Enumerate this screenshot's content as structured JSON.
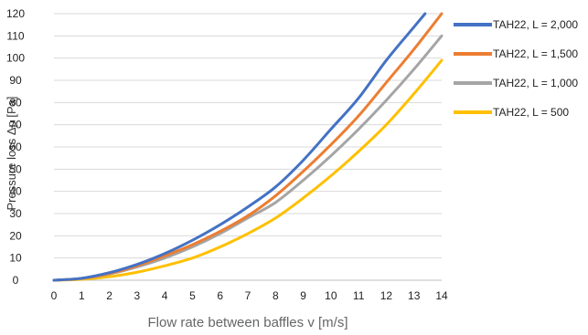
{
  "chart_data": {
    "type": "line",
    "title": "",
    "xlabel": "Flow rate between baffles v [m/s]",
    "ylabel": "Pressure loss Δp [Pa]",
    "xlim": [
      0,
      14
    ],
    "ylim": [
      0,
      120
    ],
    "x_ticks": [
      0,
      1,
      2,
      3,
      4,
      5,
      6,
      7,
      8,
      9,
      10,
      11,
      12,
      13,
      14
    ],
    "y_ticks": [
      0,
      10,
      20,
      30,
      40,
      50,
      60,
      70,
      80,
      90,
      100,
      110,
      120
    ],
    "grid": "horizontal",
    "legend": "right",
    "series": [
      {
        "name": "TAH22, L = 2,000",
        "color": "#4472C4",
        "x": [
          0,
          1,
          2,
          3,
          4,
          5,
          6,
          7,
          8,
          9,
          10,
          11,
          12,
          13,
          13.4
        ],
        "y": [
          0,
          0.9,
          3.4,
          7.1,
          12,
          18,
          25,
          33,
          42,
          54,
          68,
          82,
          99,
          114,
          120
        ]
      },
      {
        "name": "TAH22, L = 1,500",
        "color": "#ED7D31",
        "x": [
          0,
          1,
          2,
          3,
          4,
          5,
          6,
          7,
          8,
          9,
          10,
          11,
          12,
          13,
          14
        ],
        "y": [
          0,
          0.8,
          3,
          6.5,
          11,
          16,
          22,
          29,
          38,
          49,
          61,
          74,
          89,
          104,
          120
        ]
      },
      {
        "name": "TAH22, L = 1,000",
        "color": "#A5A5A5",
        "x": [
          0,
          1,
          2,
          3,
          4,
          5,
          6,
          7,
          8,
          9,
          10,
          11,
          12,
          13,
          14
        ],
        "y": [
          0,
          0.7,
          2.8,
          6,
          10,
          15,
          21,
          28,
          35,
          45,
          56,
          68,
          81,
          95,
          110
        ]
      },
      {
        "name": "TAH22, L = 500",
        "color": "#FFC000",
        "x": [
          0,
          1,
          2,
          3,
          4,
          5,
          6,
          7,
          8,
          9,
          10,
          11,
          12,
          13,
          14
        ],
        "y": [
          0,
          0.4,
          1.6,
          3.6,
          6.5,
          10,
          15,
          21,
          28,
          37,
          47,
          58,
          70,
          84,
          99
        ]
      }
    ]
  }
}
